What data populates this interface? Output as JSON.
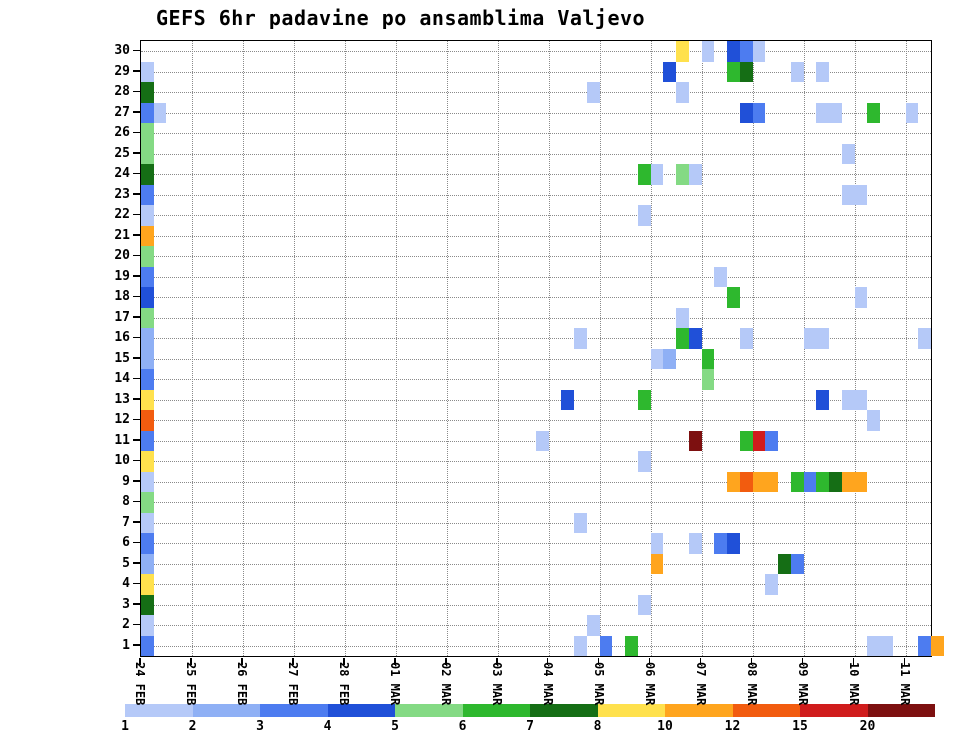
{
  "title": "GEFS 6hr padavine po ansamblima Valjevo",
  "chart_data": {
    "type": "heatmap",
    "title": "GEFS 6hr padavine po ansamblima Valjevo",
    "subtitle": "",
    "grid": "dotted",
    "x_axis": {
      "tick_labels": [
        "24 FEB",
        "25 FEB",
        "26 FEB",
        "27 FEB",
        "28 FEB",
        "01 MAR",
        "02 MAR",
        "03 MAR",
        "04 MAR",
        "05 MAR",
        "06 MAR",
        "07 MAR",
        "08 MAR",
        "09 MAR",
        "10 MAR",
        "11 MAR"
      ],
      "step_hours": 6,
      "steps_per_day": 4,
      "total_steps": 62
    },
    "y_axis": {
      "min": 1,
      "max": 30,
      "tick_step": 1
    },
    "colorbar": {
      "levels_mm": [
        1,
        2,
        3,
        4,
        5,
        6,
        7,
        8,
        10,
        12,
        15,
        20
      ],
      "tick_labels": [
        "1",
        "2",
        "3",
        "4",
        "5",
        "6",
        "7",
        "8",
        "10",
        "12",
        "15",
        "20"
      ],
      "bin_ranges_mm": [
        "1-2",
        "2-3",
        "3-4",
        "4-5",
        "5-6",
        "6-7",
        "7-8",
        "8-10",
        "10-12",
        "12-15",
        "15-20",
        ">20"
      ],
      "colors": [
        "#b5c9f8",
        "#8fb0f5",
        "#4d7cf0",
        "#2050d8",
        "#84da84",
        "#2eb82e",
        "#156e15",
        "#ffe14d",
        "#ffa51e",
        "#f25c0f",
        "#d01c1c",
        "#7d1010"
      ]
    },
    "cells": [
      {
        "e": 29,
        "t": 0,
        "c": 0
      },
      {
        "e": 28,
        "t": 0,
        "c": 6
      },
      {
        "e": 27,
        "t": 0,
        "c": 2
      },
      {
        "e": 26,
        "t": 0,
        "c": 4
      },
      {
        "e": 25,
        "t": 0,
        "c": 4
      },
      {
        "e": 24,
        "t": 0,
        "c": 6
      },
      {
        "e": 23,
        "t": 0,
        "c": 2
      },
      {
        "e": 22,
        "t": 0,
        "c": 0
      },
      {
        "e": 21,
        "t": 0,
        "c": 8
      },
      {
        "e": 20,
        "t": 0,
        "c": 4
      },
      {
        "e": 19,
        "t": 0,
        "c": 2
      },
      {
        "e": 18,
        "t": 0,
        "c": 3
      },
      {
        "e": 17,
        "t": 0,
        "c": 4
      },
      {
        "e": 16,
        "t": 0,
        "c": 1
      },
      {
        "e": 15,
        "t": 0,
        "c": 1
      },
      {
        "e": 14,
        "t": 0,
        "c": 2
      },
      {
        "e": 13,
        "t": 0,
        "c": 7
      },
      {
        "e": 12,
        "t": 0,
        "c": 9
      },
      {
        "e": 11,
        "t": 0,
        "c": 2
      },
      {
        "e": 10,
        "t": 0,
        "c": 7
      },
      {
        "e": 9,
        "t": 0,
        "c": 0
      },
      {
        "e": 8,
        "t": 0,
        "c": 4
      },
      {
        "e": 7,
        "t": 0,
        "c": 0
      },
      {
        "e": 6,
        "t": 0,
        "c": 2
      },
      {
        "e": 5,
        "t": 0,
        "c": 1
      },
      {
        "e": 4,
        "t": 0,
        "c": 7
      },
      {
        "e": 3,
        "t": 0,
        "c": 6
      },
      {
        "e": 2,
        "t": 0,
        "c": 0
      },
      {
        "e": 1,
        "t": 0,
        "c": 2
      },
      {
        "e": 27,
        "t": 1,
        "c": 0
      },
      {
        "e": 30,
        "t": 42,
        "c": 7
      },
      {
        "e": 30,
        "t": 44,
        "c": 0
      },
      {
        "e": 30,
        "t": 46,
        "c": 3
      },
      {
        "e": 30,
        "t": 47,
        "c": 2
      },
      {
        "e": 30,
        "t": 48,
        "c": 0
      },
      {
        "e": 29,
        "t": 41,
        "c": 3
      },
      {
        "e": 29,
        "t": 46,
        "c": 5
      },
      {
        "e": 29,
        "t": 47,
        "c": 6
      },
      {
        "e": 29,
        "t": 51,
        "c": 0
      },
      {
        "e": 29,
        "t": 53,
        "c": 0
      },
      {
        "e": 28,
        "t": 35,
        "c": 0
      },
      {
        "e": 28,
        "t": 42,
        "c": 0
      },
      {
        "e": 27,
        "t": 47,
        "c": 3
      },
      {
        "e": 27,
        "t": 48,
        "c": 2
      },
      {
        "e": 27,
        "t": 53,
        "c": 0
      },
      {
        "e": 27,
        "t": 54,
        "c": 0
      },
      {
        "e": 27,
        "t": 57,
        "c": 5
      },
      {
        "e": 27,
        "t": 60,
        "c": 0
      },
      {
        "e": 25,
        "t": 55,
        "c": 0
      },
      {
        "e": 24,
        "t": 39,
        "c": 5
      },
      {
        "e": 24,
        "t": 40,
        "c": 0
      },
      {
        "e": 24,
        "t": 42,
        "c": 4
      },
      {
        "e": 24,
        "t": 43,
        "c": 0
      },
      {
        "e": 23,
        "t": 55,
        "c": 0
      },
      {
        "e": 23,
        "t": 56,
        "c": 0
      },
      {
        "e": 22,
        "t": 39,
        "c": 0
      },
      {
        "e": 19,
        "t": 45,
        "c": 0
      },
      {
        "e": 18,
        "t": 46,
        "c": 5
      },
      {
        "e": 18,
        "t": 56,
        "c": 0
      },
      {
        "e": 17,
        "t": 42,
        "c": 0
      },
      {
        "e": 16,
        "t": 34,
        "c": 0
      },
      {
        "e": 16,
        "t": 42,
        "c": 5
      },
      {
        "e": 16,
        "t": 43,
        "c": 3
      },
      {
        "e": 16,
        "t": 47,
        "c": 0
      },
      {
        "e": 16,
        "t": 52,
        "c": 0
      },
      {
        "e": 16,
        "t": 53,
        "c": 0
      },
      {
        "e": 16,
        "t": 61,
        "c": 0
      },
      {
        "e": 15,
        "t": 40,
        "c": 0
      },
      {
        "e": 15,
        "t": 41,
        "c": 1
      },
      {
        "e": 15,
        "t": 44,
        "c": 5
      },
      {
        "e": 14,
        "t": 44,
        "c": 4
      },
      {
        "e": 13,
        "t": 33,
        "c": 3
      },
      {
        "e": 13,
        "t": 39,
        "c": 5
      },
      {
        "e": 13,
        "t": 53,
        "c": 3
      },
      {
        "e": 13,
        "t": 55,
        "c": 0
      },
      {
        "e": 13,
        "t": 56,
        "c": 0
      },
      {
        "e": 12,
        "t": 57,
        "c": 0
      },
      {
        "e": 11,
        "t": 31,
        "c": 0
      },
      {
        "e": 11,
        "t": 43,
        "c": 11
      },
      {
        "e": 11,
        "t": 47,
        "c": 5
      },
      {
        "e": 11,
        "t": 48,
        "c": 10
      },
      {
        "e": 11,
        "t": 49,
        "c": 2
      },
      {
        "e": 10,
        "t": 39,
        "c": 0
      },
      {
        "e": 9,
        "t": 46,
        "c": 8
      },
      {
        "e": 9,
        "t": 47,
        "c": 9
      },
      {
        "e": 9,
        "t": 48,
        "c": 8
      },
      {
        "e": 9,
        "t": 49,
        "c": 8
      },
      {
        "e": 9,
        "t": 51,
        "c": 5
      },
      {
        "e": 9,
        "t": 52,
        "c": 2
      },
      {
        "e": 9,
        "t": 53,
        "c": 5
      },
      {
        "e": 9,
        "t": 54,
        "c": 6
      },
      {
        "e": 9,
        "t": 55,
        "c": 8
      },
      {
        "e": 9,
        "t": 56,
        "c": 8
      },
      {
        "e": 7,
        "t": 34,
        "c": 0
      },
      {
        "e": 6,
        "t": 40,
        "c": 0
      },
      {
        "e": 6,
        "t": 43,
        "c": 0
      },
      {
        "e": 6,
        "t": 45,
        "c": 2
      },
      {
        "e": 6,
        "t": 46,
        "c": 3
      },
      {
        "e": 5,
        "t": 40,
        "c": 8
      },
      {
        "e": 5,
        "t": 50,
        "c": 6
      },
      {
        "e": 5,
        "t": 51,
        "c": 2
      },
      {
        "e": 4,
        "t": 49,
        "c": 0
      },
      {
        "e": 3,
        "t": 39,
        "c": 0
      },
      {
        "e": 2,
        "t": 35,
        "c": 0
      },
      {
        "e": 1,
        "t": 34,
        "c": 0
      },
      {
        "e": 1,
        "t": 36,
        "c": 2
      },
      {
        "e": 1,
        "t": 38,
        "c": 5
      },
      {
        "e": 1,
        "t": 57,
        "c": 0
      },
      {
        "e": 1,
        "t": 58,
        "c": 0
      },
      {
        "e": 1,
        "t": 61,
        "c": 2
      },
      {
        "e": 1,
        "t": 62,
        "c": 8
      }
    ]
  }
}
